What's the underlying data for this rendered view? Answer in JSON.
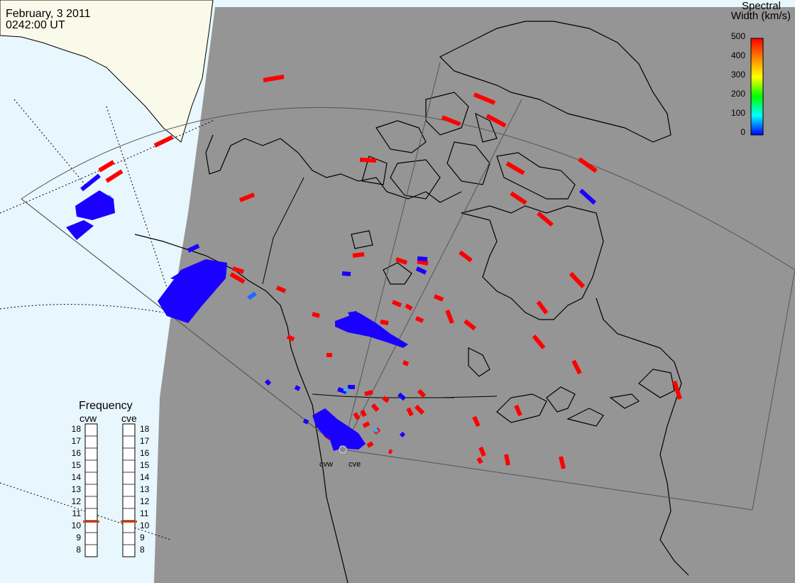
{
  "header": {
    "date": "February, 3 2011",
    "time": "0242:00 UT"
  },
  "colorbar": {
    "title_line1": "Spectral",
    "title_line2": "Width (km/s)",
    "ticks": [
      "500",
      "400",
      "300",
      "200",
      "100",
      "0"
    ],
    "gradient": [
      "#ff0000",
      "#ff8000",
      "#ffff00",
      "#00ff00",
      "#00ffff",
      "#0000ff"
    ]
  },
  "frequency_panel": {
    "title": "Frequency",
    "radars": [
      {
        "label": "cvw",
        "selected": "11"
      },
      {
        "label": "cve",
        "selected": "11"
      }
    ],
    "levels": [
      "18",
      "17",
      "16",
      "15",
      "14",
      "13",
      "12",
      "11",
      "10",
      "9",
      "8"
    ],
    "marker_color": "#e04000"
  },
  "radar_site": {
    "labels": [
      "cvw",
      "cve"
    ]
  },
  "colors": {
    "night_shade": "#959595",
    "ocean_day": "#e8f6fd",
    "land_day": "#fafaea",
    "high_width": "#ff0000",
    "low_width": "#1a00ff"
  }
}
